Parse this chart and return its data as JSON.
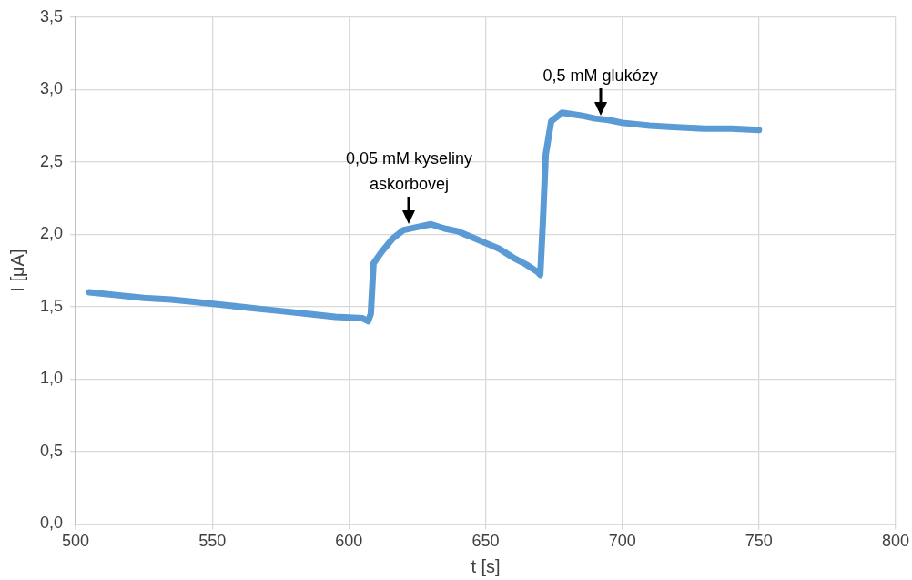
{
  "chart_data": {
    "type": "line",
    "xlabel": "t [s]",
    "ylabel": "I [μA]",
    "x": [
      505,
      515,
      525,
      535,
      545,
      555,
      565,
      575,
      585,
      595,
      605,
      607,
      608,
      609,
      612,
      616,
      620,
      625,
      630,
      635,
      640,
      645,
      650,
      655,
      660,
      665,
      669,
      670,
      671,
      672,
      674,
      678,
      685,
      690,
      695,
      700,
      710,
      720,
      730,
      740,
      750
    ],
    "series": [
      {
        "color": "#5b9bd5",
        "values": [
          1.6,
          1.58,
          1.56,
          1.55,
          1.53,
          1.51,
          1.49,
          1.47,
          1.45,
          1.43,
          1.42,
          1.4,
          1.45,
          1.8,
          1.88,
          1.97,
          2.03,
          2.05,
          2.07,
          2.04,
          2.02,
          1.98,
          1.94,
          1.9,
          1.84,
          1.79,
          1.74,
          1.72,
          2.1,
          2.55,
          2.78,
          2.84,
          2.82,
          2.8,
          2.79,
          2.77,
          2.75,
          2.74,
          2.73,
          2.73,
          2.72
        ]
      }
    ],
    "xlim": [
      500,
      800
    ],
    "xticks": [
      500,
      550,
      600,
      650,
      700,
      750,
      800
    ],
    "ylim": [
      0,
      3.5
    ],
    "yticks": [
      {
        "value": 0,
        "label": "0,0"
      },
      {
        "value": 0.5,
        "label": "0,5"
      },
      {
        "value": 1,
        "label": "1,0"
      },
      {
        "value": 1.5,
        "label": "1,5"
      },
      {
        "value": 2,
        "label": "2,0"
      },
      {
        "value": 2.5,
        "label": "2,5"
      },
      {
        "value": 3,
        "label": "3,0"
      },
      {
        "value": 3.5,
        "label": "3,5"
      }
    ],
    "grid": true,
    "legend": false,
    "marker": "none",
    "line_style": "solid",
    "annotations": [
      {
        "text": "0,05 mM kyseliny askorbovej",
        "x": 622,
        "y": 2.07
      },
      {
        "text": "0,5 mM glukózy",
        "x": 692,
        "y": 2.82
      }
    ]
  }
}
